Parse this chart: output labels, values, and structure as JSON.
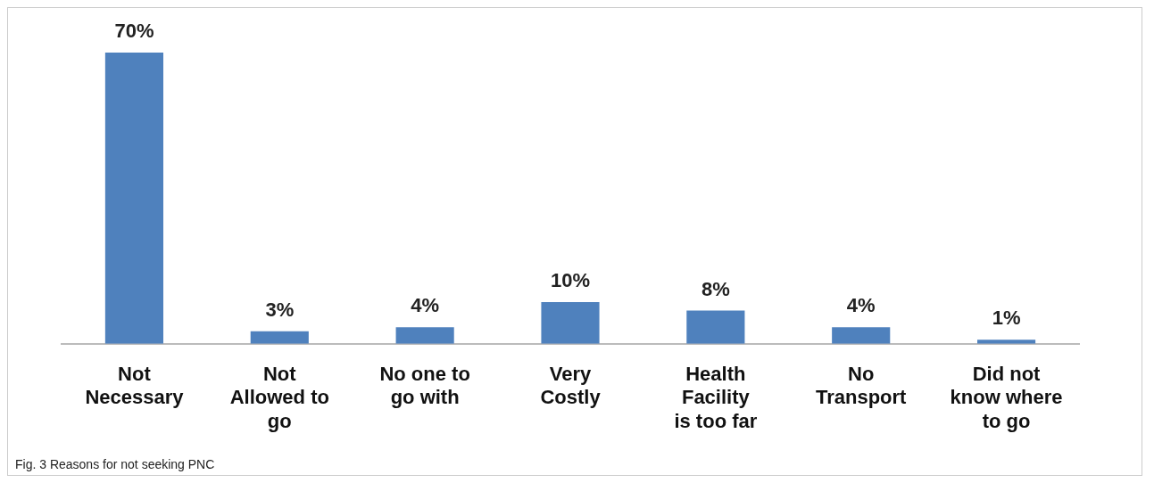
{
  "chart_data": {
    "type": "bar",
    "categories": [
      "Not Necessary",
      "Not Allowed to go",
      "No one to go with",
      "Very Costly",
      "Health Facility is too far",
      "No Transport",
      "Did not know where to go"
    ],
    "values": [
      70,
      3,
      4,
      10,
      8,
      4,
      1
    ],
    "value_labels": [
      "70%",
      "3%",
      "4%",
      "10%",
      "8%",
      "4%",
      "1%"
    ],
    "color": "#4f81bd",
    "grid": false,
    "legend": false,
    "annotations": [
      "Fig. 3 Reasons for not seeking PNC"
    ]
  }
}
